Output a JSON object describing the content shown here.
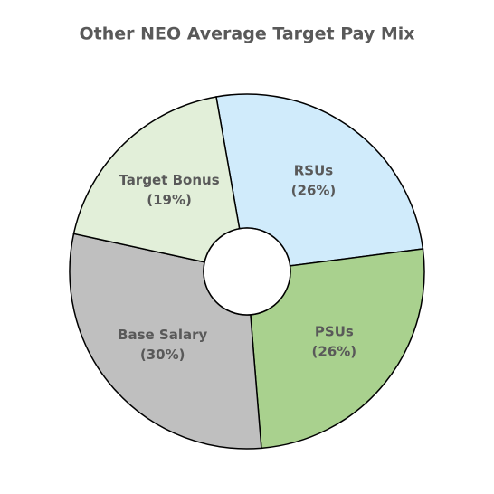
{
  "chart_data": {
    "type": "pie",
    "title": "Other NEO Average Target Pay Mix",
    "categories": [
      "RSUs",
      "PSUs",
      "Base Salary",
      "Target Bonus"
    ],
    "values": [
      26,
      26,
      30,
      19
    ],
    "value_labels": [
      "(26%)",
      "(26%)",
      "(30%)",
      "(19%)"
    ],
    "colors": [
      "#d0ebfb",
      "#a9d18e",
      "#bfbfbf",
      "#e2efd9"
    ]
  }
}
